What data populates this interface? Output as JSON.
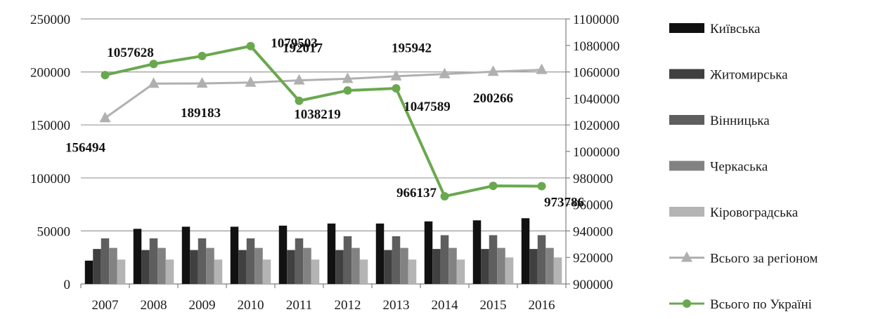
{
  "chart_data": {
    "type": "bar",
    "categories": [
      "2007",
      "2008",
      "2009",
      "2010",
      "2011",
      "2012",
      "2013",
      "2014",
      "2015",
      "2016"
    ],
    "ylim": [
      0,
      250000
    ],
    "yticks": [
      0,
      50000,
      100000,
      150000,
      200000,
      250000
    ],
    "ytick_labels": [
      "0",
      "50000",
      "100000",
      "150000",
      "200000",
      "250000"
    ],
    "y2lim": [
      900000,
      1100000
    ],
    "y2ticks": [
      900000,
      920000,
      940000,
      960000,
      980000,
      1000000,
      1020000,
      1040000,
      1060000,
      1080000,
      1100000
    ],
    "y2tick_labels": [
      "900000",
      "920000",
      "940000",
      "960000",
      "980000",
      "1000000",
      "1020000",
      "1040000",
      "1060000",
      "1080000",
      "1100000"
    ],
    "grid": "horizontal",
    "legend_position": "right",
    "series": [
      {
        "name": "Київська",
        "kind": "bar",
        "axis": "left",
        "color": "#111111",
        "values": [
          22000,
          52000,
          54000,
          54000,
          55000,
          57000,
          57000,
          59000,
          60000,
          62000
        ]
      },
      {
        "name": "Житомирська",
        "kind": "bar",
        "axis": "left",
        "color": "#404040",
        "values": [
          33000,
          32000,
          32000,
          32000,
          32000,
          32000,
          32000,
          33000,
          33000,
          33000
        ]
      },
      {
        "name": "Вінницька",
        "kind": "bar",
        "axis": "left",
        "color": "#5e5e5e",
        "values": [
          43000,
          43000,
          43000,
          43000,
          43000,
          45000,
          45000,
          46000,
          46000,
          46000
        ]
      },
      {
        "name": "Черкаська",
        "kind": "bar",
        "axis": "left",
        "color": "#828282",
        "values": [
          34000,
          34000,
          34000,
          34000,
          34000,
          34000,
          34000,
          34000,
          34000,
          34000
        ]
      },
      {
        "name": "Кіровоградська",
        "kind": "bar",
        "axis": "left",
        "color": "#b4b4b4",
        "values": [
          23000,
          23000,
          23000,
          23000,
          23000,
          23000,
          23000,
          23000,
          25000,
          25000
        ]
      },
      {
        "name": "Всього за регіоном",
        "kind": "line",
        "axis": "left",
        "color": "#b0b0b0",
        "marker": "triangle",
        "values": [
          156494,
          189000,
          189183,
          190000,
          192017,
          193500,
          195942,
          198000,
          200266,
          202000
        ],
        "labels": [
          "156494",
          "",
          "189183",
          "",
          "192017",
          "",
          "195942",
          "",
          "200266",
          ""
        ]
      },
      {
        "name": "Всього по Україні",
        "kind": "line",
        "axis": "right",
        "color": "#6aa84f",
        "marker": "circle",
        "values": [
          1057628,
          1066000,
          1072000,
          1079503,
          1038219,
          1046000,
          1047589,
          966137,
          974000,
          973786
        ],
        "labels": [
          "1057628",
          "",
          "",
          "1079503",
          "1038219",
          "",
          "1047589",
          "966137",
          "",
          "973786"
        ]
      }
    ]
  }
}
